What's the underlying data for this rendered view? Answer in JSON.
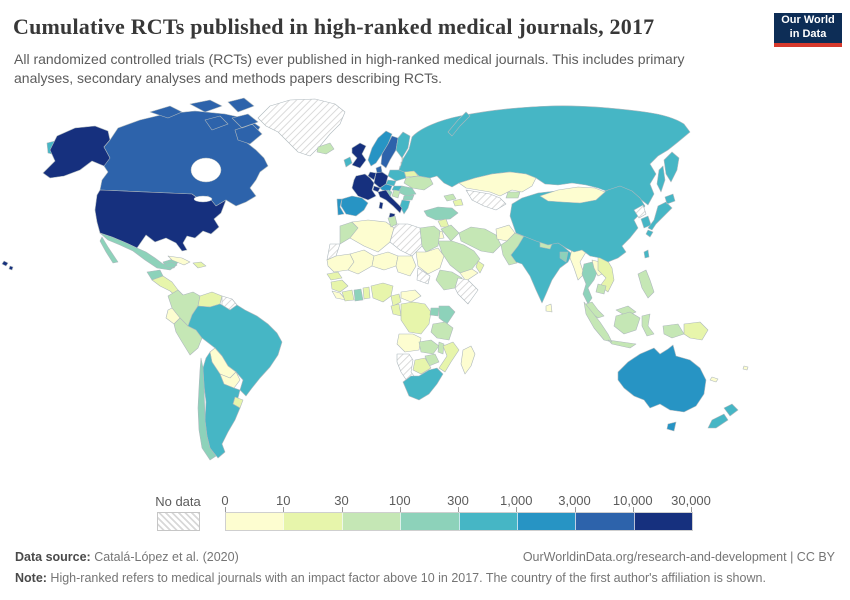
{
  "header": {
    "title": "Cumulative RCTs published in high-ranked medical journals, 2017",
    "subtitle": "All randomized controlled trials (RCTs) ever published in high-ranked medical journals. This includes primary analyses, secondary analyses and methods papers describing RCTs.",
    "logo": {
      "line1": "Our World",
      "line2": "in Data",
      "bg_color": "#0d2d56",
      "accent_color": "#d6392c"
    }
  },
  "legend": {
    "no_data_label": "No data",
    "ticks": [
      "0",
      "10",
      "30",
      "100",
      "300",
      "1,000",
      "3,000",
      "10,000",
      "30,000"
    ]
  },
  "footer": {
    "source_label": "Data source:",
    "source_text": " Catalá-López et al. (2020)",
    "url_text": "OurWorldinData.org/research-and-development | CC BY",
    "note_label": "Note:",
    "note_text": " High-ranked refers to medical journals with an impact factor above 10 in 2017. The country of the first author's affiliation is shown."
  },
  "chart_data": {
    "type": "choropleth-world-map",
    "title": "Cumulative RCTs published in high-ranked medical journals, 2017",
    "unit": "cumulative RCTs (count, binned)",
    "no_data": {
      "label": "No data",
      "style": "diagonal-hatch"
    },
    "bins": [
      {
        "label": "0 – 10",
        "color": "#fdfdd0"
      },
      {
        "label": "10 – 30",
        "color": "#e7f5ab"
      },
      {
        "label": "30 – 100",
        "color": "#c5e7b5"
      },
      {
        "label": "100 – 300",
        "color": "#8dd2ba"
      },
      {
        "label": "300 – 1,000",
        "color": "#46b6c5"
      },
      {
        "label": "1,000 – 3,000",
        "color": "#2794c4"
      },
      {
        "label": "3,000 – 10,000",
        "color": "#2d63ab"
      },
      {
        "label": "10,000 – 30,000",
        "color": "#16307e"
      }
    ],
    "region_bins": {
      "chukotka-fragment": 5,
      "hawaii": 8,
      "alaska": 8,
      "usa": 8,
      "canada": 7,
      "canada-arctic": 7,
      "greenland": 0,
      "iceland": 3,
      "mexico": 4,
      "guatemala": 4,
      "central-america": 2,
      "cuba": 1,
      "hispaniola": 2,
      "colombia": 3,
      "venezuela": 2,
      "guianas": 0,
      "ecuador": 1,
      "peru": 3,
      "brazil": 5,
      "bolivia": 1,
      "paraguay": 1,
      "uruguay": 2,
      "argentina": 5,
      "chile": 4,
      "uk": 8,
      "ireland": 5,
      "norway": 6,
      "sweden": 7,
      "finland": 5,
      "denmark": 7,
      "estonia": 3,
      "latvia": 4,
      "lithuania": 3,
      "belarus": 2,
      "poland": 5,
      "germany": 8,
      "benelux": 8,
      "france": 8,
      "spain": 6,
      "portugal": 6,
      "switzerland": 8,
      "austria": 6,
      "czech-slovakia": 5,
      "hungary": 5,
      "ukraine": 3,
      "romania": 4,
      "serbia": 3,
      "croatia": 4,
      "bulgaria": 4,
      "greece": 5,
      "italy": 8,
      "russia": 5,
      "novaya-zemlya": 5,
      "kamchatka": 5,
      "sakhalin": 5,
      "kazakhstan": 1,
      "uzbek-turkmen": 0,
      "kyrgyz-tajik": 3,
      "georgia": 3,
      "azerbaijan": 2,
      "turkey": 4,
      "syria": 2,
      "iraq": 3,
      "israel": 6,
      "jordan": 1,
      "saudi-arabia": 3,
      "yemen": 1,
      "oman": 2,
      "iran": 3,
      "afghanistan": 1,
      "pakistan": 3,
      "india": 5,
      "nepal": 3,
      "bangladesh": 4,
      "sri-lanka": 1,
      "myanmar": 1,
      "thailand": 4,
      "laos": 1,
      "vietnam": 2,
      "cambodia": 3,
      "malaysia": 3,
      "indonesia": 3,
      "philippines": 3,
      "png": 2,
      "china": 5,
      "mongolia": 1,
      "north-korea": 0,
      "south-korea": 5,
      "taiwan": 5,
      "japan": 5,
      "morocco": 3,
      "western-sahara": 0,
      "algeria": 1,
      "tunisia": 3,
      "libya": 0,
      "egypt": 3,
      "mauritania": 1,
      "mali": 1,
      "niger": 1,
      "chad": 1,
      "sudan": 1,
      "south-sudan": 0,
      "ethiopia": 3,
      "somalia": 0,
      "senegal": 2,
      "guinea": 2,
      "sierra-liberia": 1,
      "ivory-coast": 2,
      "ghana": 4,
      "togo-benin": 2,
      "nigeria": 2,
      "cameroon": 2,
      "car": 1,
      "gabon-congo": 2,
      "drc": 2,
      "uganda": 4,
      "kenya": 4,
      "tanzania": 3,
      "angola": 1,
      "zambia": 3,
      "malawi": 3,
      "mozambique": 2,
      "zimbabwe": 3,
      "botswana": 2,
      "namibia": 0,
      "south-africa": 5,
      "madagascar": 1,
      "australia": 6,
      "tasmania": 6,
      "new-zealand": 5,
      "fiji": 1,
      "new-caledonia": 1
    }
  }
}
